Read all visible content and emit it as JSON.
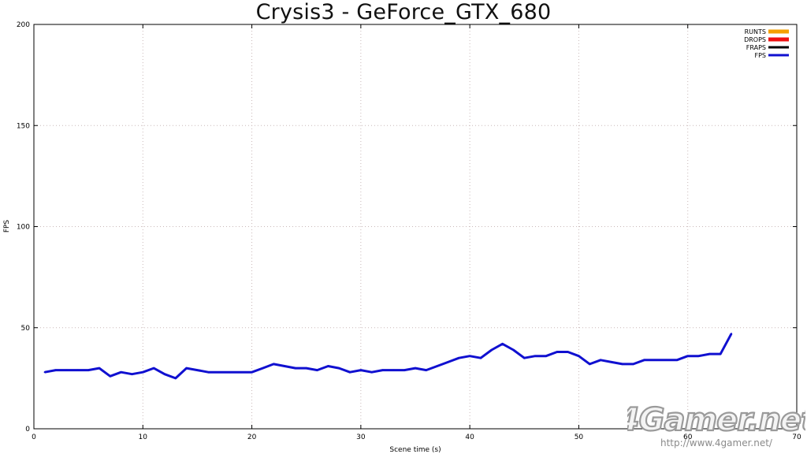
{
  "chart_data": {
    "type": "line",
    "title": "Crysis3 - GeForce_GTX_680",
    "xlabel": "Scene time (s)",
    "ylabel": "FPS",
    "xlim": [
      0,
      70
    ],
    "ylim": [
      0,
      200
    ],
    "x_ticks": [
      0,
      10,
      20,
      30,
      40,
      50,
      60,
      70
    ],
    "y_ticks": [
      0,
      50,
      100,
      150,
      200
    ],
    "grid": true,
    "legend_position": "top-right",
    "legend": [
      {
        "label": "RUNTS",
        "color": "#f5a000"
      },
      {
        "label": "DROPS",
        "color": "#ee1111"
      },
      {
        "label": "FRAPS",
        "color": "#000000"
      },
      {
        "label": "FPS",
        "color": "#1010d0"
      }
    ],
    "series": [
      {
        "name": "FPS",
        "color": "#1010d0",
        "x": [
          1,
          2,
          3,
          4,
          5,
          6,
          7,
          8,
          9,
          10,
          11,
          12,
          13,
          14,
          15,
          16,
          17,
          18,
          19,
          20,
          21,
          22,
          23,
          24,
          25,
          26,
          27,
          28,
          29,
          30,
          31,
          32,
          33,
          34,
          35,
          36,
          37,
          38,
          39,
          40,
          41,
          42,
          43,
          44,
          45,
          46,
          47,
          48,
          49,
          50,
          51,
          52,
          53,
          54,
          55,
          56,
          57,
          58,
          59,
          60,
          61,
          62,
          63,
          64
        ],
        "y": [
          28,
          29,
          29,
          29,
          29,
          30,
          26,
          28,
          27,
          28,
          30,
          27,
          25,
          30,
          29,
          28,
          28,
          28,
          28,
          28,
          30,
          32,
          31,
          30,
          30,
          29,
          31,
          30,
          28,
          29,
          28,
          29,
          29,
          29,
          30,
          29,
          31,
          33,
          35,
          36,
          35,
          39,
          42,
          39,
          35,
          36,
          36,
          38,
          38,
          36,
          32,
          34,
          33,
          32,
          32,
          34,
          34,
          34,
          34,
          36,
          36,
          37,
          37,
          47
        ]
      }
    ]
  },
  "watermark": {
    "logo": "4Gamer.net",
    "url": "http://www.4gamer.net/"
  }
}
